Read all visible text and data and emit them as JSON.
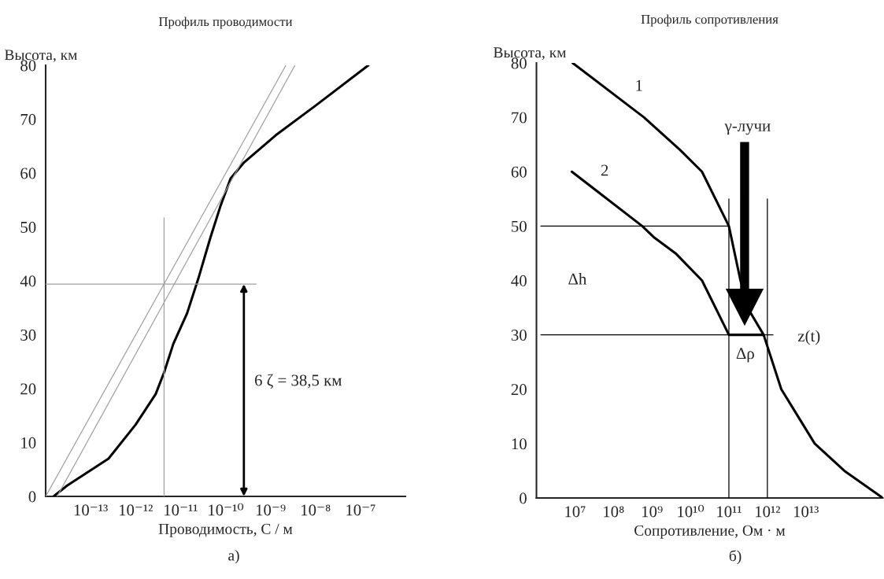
{
  "chart_data": [
    {
      "type": "line",
      "title": "Профиль проводимости",
      "xlabel": "Проводимость, С / м",
      "ylabel": "Высота, км",
      "log": "x",
      "xlim": [
        1e-14,
        1e-06
      ],
      "xticks": [
        {
          "value": 1e-13,
          "label": "10⁻¹³"
        },
        {
          "value": 1e-12,
          "label": "10⁻¹²"
        },
        {
          "value": 1e-11,
          "label": "10⁻¹¹"
        },
        {
          "value": 1e-10,
          "label": "10⁻¹⁰"
        },
        {
          "value": 1e-09,
          "label": "10⁻⁹"
        },
        {
          "value": 1e-08,
          "label": "10⁻⁸"
        },
        {
          "value": 1e-07,
          "label": "10⁻⁷"
        }
      ],
      "ylim": [
        0,
        80
      ],
      "yticks": [
        0,
        10,
        20,
        30,
        40,
        50,
        60,
        70,
        80
      ],
      "grid": false,
      "series": [
        {
          "color": "#000000",
          "x": [
            1.5e-14,
            3e-14,
            2.5e-13,
            1e-12,
            2.8e-12,
            4.3e-12,
            6.9e-12,
            1.4e-11,
            2.5e-11,
            4.6e-11,
            7.8e-11,
            1.3e-10,
            2.6e-10,
            1.3e-09,
            1e-08,
            1.5e-07
          ],
          "values": [
            0,
            2,
            7,
            13.3,
            19,
            23,
            28.3,
            34,
            40.5,
            48,
            54,
            59,
            62,
            67,
            72.5,
            80
          ]
        },
        {
          "color": "#a0a0a0",
          "x": [
            1e-14,
            2.2e-09
          ],
          "values": [
            0,
            80
          ]
        },
        {
          "color": "#a0a0a0",
          "x": [
            1.8e-14,
            3.5e-09
          ],
          "values": [
            0,
            80
          ]
        },
        {
          "color": "#a0a0a0",
          "x": [
            4.3e-12,
            4.3e-12
          ],
          "values": [
            0,
            51.7
          ]
        },
        {
          "color": "#a0a0a0",
          "x": [
            1e-14,
            4.8e-10
          ],
          "values": [
            39.4,
            39.4
          ]
        }
      ],
      "annotations": [
        "6 ζ = 38,5 км",
        "а)"
      ]
    },
    {
      "type": "line",
      "title": "Профиль сопротивления",
      "xlabel": "Сопротивление, Ом · м",
      "ylabel": "Высота, км",
      "log": "x",
      "xlim": [
        1000000.0,
        1000000000000000.0
      ],
      "xticks": [
        {
          "value": 10000000.0,
          "label": "10⁷"
        },
        {
          "value": 100000000.0,
          "label": "10⁸"
        },
        {
          "value": 1000000000.0,
          "label": "10⁹"
        },
        {
          "value": 10000000000.0,
          "label": "10¹⁰"
        },
        {
          "value": 100000000000.0,
          "label": "10¹¹"
        },
        {
          "value": 1000000000000.0,
          "label": "10¹²"
        },
        {
          "value": 10000000000000.0,
          "label": "10¹³"
        }
      ],
      "ylim": [
        0,
        80
      ],
      "yticks": [
        0,
        10,
        20,
        30,
        40,
        50,
        60,
        70,
        80
      ],
      "grid": false,
      "series": [
        {
          "color": "#000000",
          "x": [
            8700000.0,
            620000000.0,
            5400000000.0,
            20000000000.0,
            100000000000.0,
            200000000000.0,
            370000000000.0,
            800000000000.0,
            2300000000000.0,
            17000000000000.0,
            100000000000000.0,
            1000000000000000.0
          ],
          "values": [
            80,
            70,
            64,
            60,
            50,
            40,
            34,
            30,
            20,
            10,
            5,
            0
          ]
        },
        {
          "color": "#000000",
          "x": [
            8300000.0,
            560000000.0,
            1100000000.0,
            4100000000.0,
            20000000000.0,
            100000000000.0,
            800000000000.0
          ],
          "values": [
            60,
            50,
            48,
            45,
            40,
            30,
            30
          ]
        },
        {
          "color": "#000000",
          "x": [
            1300000.0,
            100000000000.0
          ],
          "values": [
            50,
            50
          ]
        },
        {
          "color": "#000000",
          "x": [
            1300000.0,
            1400000000000.0
          ],
          "values": [
            30,
            30
          ]
        },
        {
          "color": "#000000",
          "x": [
            100000000000.0,
            100000000000.0
          ],
          "values": [
            0,
            55
          ]
        },
        {
          "color": "#000000",
          "x": [
            1000000000000.0,
            1000000000000.0
          ],
          "values": [
            0,
            55
          ]
        }
      ],
      "annotations": [
        "1",
        "2",
        "Δh",
        "z(t)",
        "Δρ",
        "γ-лучи",
        "б)"
      ]
    }
  ]
}
